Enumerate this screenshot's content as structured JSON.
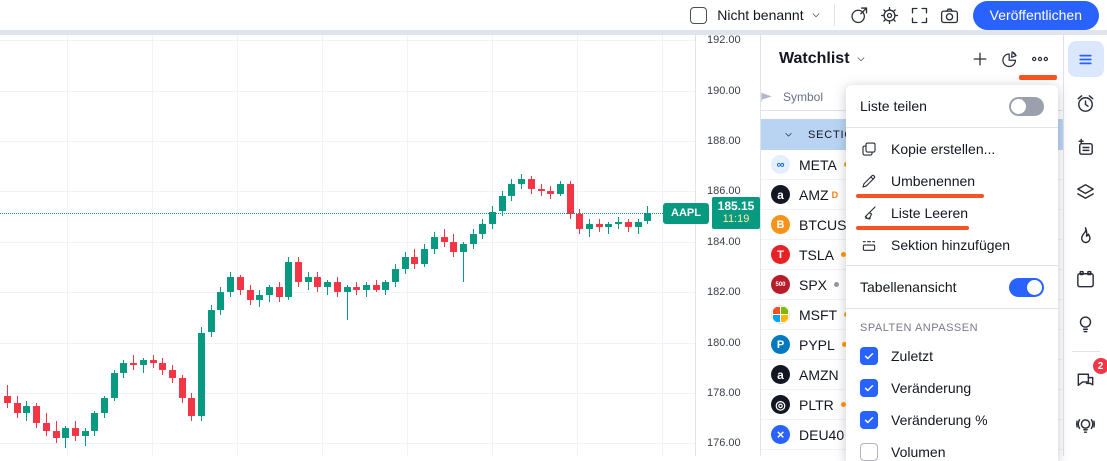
{
  "toolbar": {
    "layout_name": "Nicht benannt",
    "publish_label": "Veröffentlichen",
    "icons": [
      "quick-load-layout-icon",
      "gear-icon",
      "fullscreen-icon",
      "camera-icon"
    ]
  },
  "chart_data": {
    "type": "candlestick",
    "symbol": "AAPL",
    "last_price": 185.15,
    "last_price_label": "185.15",
    "countdown": "11:19",
    "up_color": "#089981",
    "down_color": "#f23645",
    "ylim": [
      175.5,
      192.2
    ],
    "axis_tick_prices": [
      192,
      190,
      188,
      186,
      184,
      182,
      180,
      178,
      176
    ],
    "grid_vertical_x": [
      67,
      152,
      237,
      322,
      407,
      492,
      577,
      662
    ],
    "grid_on": true,
    "x_start": 4,
    "x_step": 9.7,
    "candles": [
      [
        177.9,
        178.3,
        177.4,
        177.6
      ],
      [
        177.6,
        177.9,
        177.0,
        177.2
      ],
      [
        177.2,
        177.7,
        176.9,
        177.5
      ],
      [
        177.5,
        177.6,
        176.6,
        176.8
      ],
      [
        176.8,
        177.2,
        176.3,
        176.5
      ],
      [
        176.5,
        176.9,
        176.0,
        176.2
      ],
      [
        176.2,
        176.7,
        175.8,
        176.6
      ],
      [
        176.6,
        176.9,
        176.1,
        176.3
      ],
      [
        176.3,
        176.6,
        175.9,
        176.5
      ],
      [
        176.5,
        177.3,
        176.3,
        177.2
      ],
      [
        177.2,
        177.9,
        177.0,
        177.8
      ],
      [
        177.8,
        178.9,
        177.7,
        178.8
      ],
      [
        178.8,
        179.3,
        178.6,
        179.2
      ],
      [
        179.2,
        179.5,
        178.9,
        179.1
      ],
      [
        179.1,
        179.4,
        178.8,
        179.3
      ],
      [
        179.3,
        179.5,
        179.0,
        179.2
      ],
      [
        179.2,
        179.4,
        178.7,
        178.9
      ],
      [
        178.9,
        179.1,
        178.4,
        178.6
      ],
      [
        178.6,
        178.7,
        177.6,
        177.8
      ],
      [
        177.8,
        178.0,
        176.9,
        177.1
      ],
      [
        177.1,
        180.6,
        176.9,
        180.4
      ],
      [
        180.4,
        181.5,
        180.2,
        181.3
      ],
      [
        181.3,
        182.2,
        181.1,
        182.0
      ],
      [
        182.0,
        182.8,
        181.8,
        182.6
      ],
      [
        182.6,
        182.7,
        181.9,
        182.1
      ],
      [
        182.1,
        182.3,
        181.5,
        181.7
      ],
      [
        181.7,
        182.1,
        181.4,
        181.9
      ],
      [
        181.9,
        182.3,
        181.6,
        182.2
      ],
      [
        182.2,
        182.4,
        181.6,
        181.8
      ],
      [
        181.8,
        183.4,
        181.7,
        183.2
      ],
      [
        183.2,
        183.4,
        182.2,
        182.4
      ],
      [
        182.4,
        182.8,
        182.1,
        182.6
      ],
      [
        182.6,
        182.8,
        182.0,
        182.2
      ],
      [
        182.2,
        182.5,
        181.9,
        182.4
      ],
      [
        182.4,
        182.6,
        181.8,
        182.0
      ],
      [
        182.0,
        182.3,
        180.9,
        182.2
      ],
      [
        182.2,
        182.4,
        181.9,
        182.1
      ],
      [
        182.1,
        182.4,
        181.8,
        182.3
      ],
      [
        182.3,
        182.5,
        182.0,
        182.1
      ],
      [
        182.1,
        182.5,
        181.9,
        182.4
      ],
      [
        182.4,
        183.1,
        182.2,
        182.9
      ],
      [
        182.9,
        183.6,
        182.7,
        183.4
      ],
      [
        183.4,
        183.7,
        182.9,
        183.1
      ],
      [
        183.1,
        183.9,
        183.0,
        183.7
      ],
      [
        183.7,
        184.4,
        183.5,
        184.2
      ],
      [
        184.2,
        184.5,
        183.8,
        184.0
      ],
      [
        184.0,
        184.3,
        183.4,
        183.6
      ],
      [
        183.6,
        184.0,
        182.4,
        183.9
      ],
      [
        183.9,
        184.5,
        183.7,
        184.3
      ],
      [
        184.3,
        184.9,
        184.1,
        184.7
      ],
      [
        184.7,
        185.4,
        184.5,
        185.2
      ],
      [
        185.2,
        186.0,
        185.0,
        185.8
      ],
      [
        185.8,
        186.5,
        185.6,
        186.3
      ],
      [
        186.3,
        186.7,
        186.1,
        186.5
      ],
      [
        186.5,
        186.6,
        185.9,
        186.1
      ],
      [
        186.1,
        186.3,
        185.8,
        186.0
      ],
      [
        186.0,
        186.2,
        185.7,
        185.9
      ],
      [
        185.9,
        186.4,
        185.8,
        186.3
      ],
      [
        186.3,
        186.4,
        184.9,
        185.1
      ],
      [
        185.1,
        185.3,
        184.3,
        184.5
      ],
      [
        184.5,
        184.9,
        184.2,
        184.7
      ],
      [
        184.7,
        184.9,
        184.4,
        184.6
      ],
      [
        184.6,
        184.8,
        184.3,
        184.7
      ],
      [
        184.7,
        185.0,
        184.5,
        184.8
      ],
      [
        184.8,
        184.9,
        184.4,
        184.6
      ],
      [
        184.6,
        184.9,
        184.3,
        184.8
      ],
      [
        184.8,
        185.4,
        184.7,
        185.15
      ]
    ]
  },
  "watchlist": {
    "title": "Watchlist",
    "header_icons": [
      "plus-icon",
      "pie-chart-icon",
      "more-dots-icon"
    ],
    "column_header": "Symbol",
    "section_label": "SECTION",
    "rows": [
      {
        "symbol": "META",
        "logo_text": "∞",
        "logo_bg": "#e3efff",
        "logo_color": "#0668e1",
        "logo_size": 11,
        "marker": "dot",
        "marker_color": "#ff9800"
      },
      {
        "symbol": "AMZ",
        "logo_text": "a",
        "logo_bg": "#131722",
        "logo_color": "#ffffff",
        "logo_size": 12,
        "marker": "D",
        "marker_color": "#f57f17"
      },
      {
        "symbol": "BTCUSD",
        "logo_text": "B",
        "logo_bg": "#f7931a",
        "logo_color": "#ffffff",
        "logo_size": 11,
        "marker": "",
        "marker_color": ""
      },
      {
        "symbol": "TSLA",
        "logo_text": "T",
        "logo_bg": "#e82127",
        "logo_color": "#ffffff",
        "logo_size": 11,
        "marker": "dot",
        "marker_color": "#ff9800"
      },
      {
        "symbol": "SPX",
        "logo_text": "500",
        "logo_bg": "#b71c2b",
        "logo_color": "#ffffff",
        "logo_size": 6,
        "marker": "dot",
        "marker_color": "#9598a1"
      },
      {
        "symbol": "MSFT",
        "logo_type": "grid",
        "logo_bg": "#ffffff",
        "grid_colors": [
          "#f25022",
          "#7fba00",
          "#00a4ef",
          "#ffb900"
        ],
        "marker": "dot",
        "marker_color": "#ff9800"
      },
      {
        "symbol": "PYPL",
        "logo_text": "P",
        "logo_bg": "#0079c1",
        "logo_color": "#ffffff",
        "logo_size": 11,
        "marker": "dot",
        "marker_color": "#ff9800"
      },
      {
        "symbol": "AMZN",
        "logo_text": "a",
        "logo_bg": "#131722",
        "logo_color": "#ffffff",
        "logo_size": 12,
        "marker": "dot",
        "marker_color": "#ff9800"
      },
      {
        "symbol": "PLTR",
        "logo_text": "◎",
        "logo_bg": "#131722",
        "logo_color": "#ffffff",
        "logo_size": 12,
        "marker": "dot",
        "marker_color": "#ff9800"
      },
      {
        "symbol": "DEU40",
        "logo_text": "×",
        "logo_bg": "#2962ff",
        "logo_color": "#ffffff",
        "logo_size": 13,
        "marker": "",
        "marker_color": ""
      }
    ]
  },
  "context_menu": {
    "share_label": "Liste teilen",
    "share_toggle_on": false,
    "items": [
      {
        "icon": "copy-icon",
        "label": "Kopie erstellen...",
        "annotated": false
      },
      {
        "icon": "pencil-icon",
        "label": "Umbenennen",
        "annotated": true,
        "underline_width": 128
      },
      {
        "icon": "broom-icon",
        "label": "Liste Leeren",
        "annotated": true,
        "underline_width": 113
      },
      {
        "icon": "add-section-icon",
        "label": "Sektion hinzufügen",
        "annotated": false
      }
    ],
    "table_view_label": "Tabellenansicht",
    "table_view_on": true,
    "columns_header": "SPALTEN ANPASSEN",
    "columns": [
      {
        "label": "Zuletzt",
        "checked": true
      },
      {
        "label": "Veränderung",
        "checked": true
      },
      {
        "label": "Veränderung %",
        "checked": true
      },
      {
        "label": "Volumen",
        "checked": false
      }
    ]
  },
  "sidebar": {
    "items": [
      {
        "icon": "watchlist-lines-icon",
        "active": true
      },
      {
        "icon": "alarm-clock-icon"
      },
      {
        "icon": "notes-plus-icon"
      },
      {
        "icon": "layers-icon"
      },
      {
        "icon": "flame-icon"
      },
      {
        "icon": "calendar-icon"
      },
      {
        "icon": "lightbulb-icon"
      },
      {
        "icon": "chat-icon",
        "badge": "2",
        "divider_before": true
      },
      {
        "icon": "lightbulb-waves-icon"
      }
    ]
  },
  "colors": {
    "accent_blue": "#2962ff",
    "up_green": "#089981",
    "down_red": "#f23645",
    "annotation_orange": "#f55322",
    "badge_red": "#f23645",
    "section_row_blue": "#b9d4f2"
  }
}
